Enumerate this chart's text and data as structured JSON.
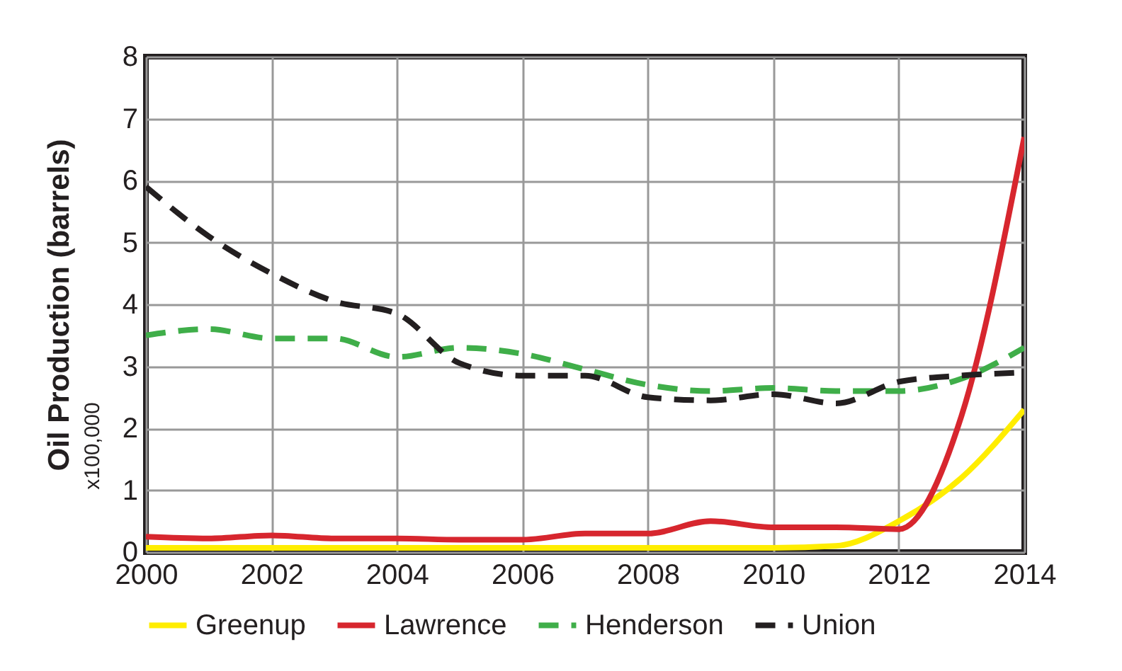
{
  "chart_data": {
    "type": "line",
    "ylabel": "Oil Production (barrels)",
    "annotations": [
      "x100,000"
    ],
    "x": [
      2000,
      2001,
      2002,
      2003,
      2004,
      2005,
      2006,
      2007,
      2008,
      2009,
      2010,
      2011,
      2012,
      2013,
      2014
    ],
    "series": [
      {
        "name": "Greenup",
        "color": "#ffed00",
        "line_style": "solid",
        "values": [
          0.07,
          0.07,
          0.07,
          0.07,
          0.07,
          0.07,
          0.07,
          0.07,
          0.07,
          0.07,
          0.07,
          0.1,
          0.5,
          1.2,
          2.3
        ]
      },
      {
        "name": "Lawrence",
        "color": "#d7262e",
        "line_style": "solid",
        "values": [
          0.25,
          0.22,
          0.27,
          0.22,
          0.22,
          0.2,
          0.2,
          0.3,
          0.3,
          0.5,
          0.4,
          0.4,
          0.37,
          2.2,
          6.7
        ]
      },
      {
        "name": "Henderson",
        "color": "#3fae49",
        "line_style": "dashed",
        "values": [
          3.5,
          3.6,
          3.45,
          3.45,
          3.15,
          3.3,
          3.2,
          2.95,
          2.7,
          2.6,
          2.65,
          2.6,
          2.6,
          2.8,
          3.3
        ]
      },
      {
        "name": "Union",
        "color": "#231f20",
        "line_style": "dashed",
        "values": [
          5.9,
          5.1,
          4.5,
          4.05,
          3.85,
          3.05,
          2.85,
          2.85,
          2.5,
          2.45,
          2.55,
          2.4,
          2.75,
          2.85,
          2.9
        ]
      }
    ],
    "xlim": [
      2000,
      2014
    ],
    "xticks": [
      2000,
      2002,
      2004,
      2006,
      2008,
      2010,
      2012,
      2014
    ],
    "ylim": [
      0,
      8
    ],
    "yticks": [
      0,
      1,
      2,
      3,
      4,
      5,
      6,
      7,
      8
    ],
    "grid": true,
    "legend": "bottom"
  }
}
